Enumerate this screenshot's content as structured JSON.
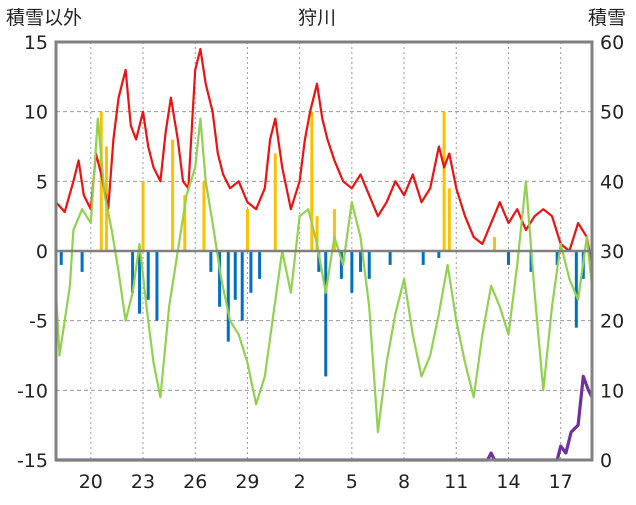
{
  "chart_data": {
    "type": "line",
    "title": "狩川",
    "ylabel_left": "積雪以外",
    "ylabel_right": "積雪",
    "yleft_range": [
      -15,
      15
    ],
    "yleft_ticks": [
      "15",
      "10",
      "5",
      "0",
      "-5",
      "-10",
      "-15"
    ],
    "yright_range": [
      0,
      60
    ],
    "yright_ticks": [
      "60",
      "50",
      "40",
      "30",
      "20",
      "10",
      "0"
    ],
    "x_ticks": [
      "20",
      "23",
      "26",
      "29",
      "2",
      "5",
      "8",
      "11",
      "14",
      "17"
    ],
    "day_range": [
      18,
      48.8
    ],
    "grid": true,
    "legend": "none",
    "colors": {
      "max_temp": "#ee1111",
      "min_temp": "#92d050",
      "precip": "#ffc000",
      "temp_below_zero_bar": "#0070c0",
      "snow_depth": "#7030a0",
      "frame": "#808080",
      "zero_line": "#808080"
    },
    "series": [
      {
        "key": "max_temp",
        "axis": "left",
        "points": [
          [
            18.0,
            3.5
          ],
          [
            18.5,
            2.8
          ],
          [
            19.0,
            5.0
          ],
          [
            19.3,
            6.5
          ],
          [
            19.6,
            4.0
          ],
          [
            20.0,
            3.0
          ],
          [
            20.3,
            7.0
          ],
          [
            20.6,
            5.5
          ],
          [
            21.0,
            3.0
          ],
          [
            21.3,
            8.0
          ],
          [
            21.6,
            11.0
          ],
          [
            22.0,
            13.0
          ],
          [
            22.3,
            9.0
          ],
          [
            22.6,
            8.0
          ],
          [
            23.0,
            10.0
          ],
          [
            23.3,
            7.5
          ],
          [
            23.6,
            6.0
          ],
          [
            24.0,
            5.0
          ],
          [
            24.3,
            8.5
          ],
          [
            24.6,
            11.0
          ],
          [
            25.0,
            8.0
          ],
          [
            25.3,
            5.0
          ],
          [
            25.6,
            4.5
          ],
          [
            26.0,
            13.0
          ],
          [
            26.3,
            14.5
          ],
          [
            26.6,
            12.0
          ],
          [
            27.0,
            10.0
          ],
          [
            27.3,
            7.0
          ],
          [
            27.6,
            5.5
          ],
          [
            28.0,
            4.5
          ],
          [
            28.5,
            5.0
          ],
          [
            29.0,
            3.5
          ],
          [
            29.5,
            3.0
          ],
          [
            30.0,
            4.5
          ],
          [
            30.3,
            8.0
          ],
          [
            30.6,
            9.5
          ],
          [
            31.0,
            6.0
          ],
          [
            31.5,
            3.0
          ],
          [
            32.0,
            5.0
          ],
          [
            32.3,
            8.0
          ],
          [
            32.6,
            10.0
          ],
          [
            33.0,
            12.0
          ],
          [
            33.3,
            9.5
          ],
          [
            33.6,
            8.0
          ],
          [
            34.0,
            6.5
          ],
          [
            34.5,
            5.0
          ],
          [
            35.0,
            4.5
          ],
          [
            35.5,
            5.5
          ],
          [
            36.0,
            4.0
          ],
          [
            36.5,
            2.5
          ],
          [
            37.0,
            3.5
          ],
          [
            37.5,
            5.0
          ],
          [
            38.0,
            4.0
          ],
          [
            38.5,
            5.5
          ],
          [
            39.0,
            3.5
          ],
          [
            39.5,
            4.5
          ],
          [
            40.0,
            7.5
          ],
          [
            40.3,
            6.0
          ],
          [
            40.6,
            7.0
          ],
          [
            41.0,
            4.5
          ],
          [
            41.5,
            2.5
          ],
          [
            42.0,
            1.0
          ],
          [
            42.5,
            0.5
          ],
          [
            43.0,
            2.0
          ],
          [
            43.5,
            3.5
          ],
          [
            44.0,
            2.0
          ],
          [
            44.5,
            3.0
          ],
          [
            45.0,
            1.5
          ],
          [
            45.5,
            2.5
          ],
          [
            46.0,
            3.0
          ],
          [
            46.5,
            2.5
          ],
          [
            47.0,
            0.5
          ],
          [
            47.5,
            0.0
          ],
          [
            48.0,
            2.0
          ],
          [
            48.5,
            1.0
          ],
          [
            48.8,
            -1.0
          ]
        ]
      },
      {
        "key": "min_temp",
        "axis": "left",
        "points": [
          [
            18.0,
            -3.0
          ],
          [
            18.2,
            -7.5
          ],
          [
            18.5,
            -5.0
          ],
          [
            18.8,
            -2.5
          ],
          [
            19.0,
            1.5
          ],
          [
            19.5,
            3.0
          ],
          [
            20.0,
            2.0
          ],
          [
            20.4,
            9.5
          ],
          [
            20.8,
            4.0
          ],
          [
            21.2,
            1.5
          ],
          [
            21.6,
            -1.5
          ],
          [
            22.0,
            -5.0
          ],
          [
            22.4,
            -3.0
          ],
          [
            22.8,
            0.5
          ],
          [
            23.2,
            -4.0
          ],
          [
            23.6,
            -8.0
          ],
          [
            24.0,
            -10.5
          ],
          [
            24.5,
            -4.0
          ],
          [
            25.0,
            0.0
          ],
          [
            25.5,
            4.0
          ],
          [
            26.0,
            6.0
          ],
          [
            26.3,
            9.5
          ],
          [
            26.6,
            5.0
          ],
          [
            27.0,
            2.0
          ],
          [
            27.5,
            -2.0
          ],
          [
            28.0,
            -5.0
          ],
          [
            28.5,
            -6.0
          ],
          [
            29.0,
            -8.0
          ],
          [
            29.5,
            -11.0
          ],
          [
            30.0,
            -9.0
          ],
          [
            30.5,
            -4.5
          ],
          [
            31.0,
            0.0
          ],
          [
            31.5,
            -3.0
          ],
          [
            32.0,
            2.5
          ],
          [
            32.5,
            3.0
          ],
          [
            33.0,
            0.5
          ],
          [
            33.5,
            -3.0
          ],
          [
            34.0,
            1.0
          ],
          [
            34.5,
            -1.0
          ],
          [
            35.0,
            3.5
          ],
          [
            35.5,
            1.0
          ],
          [
            36.0,
            -4.0
          ],
          [
            36.5,
            -13.0
          ],
          [
            37.0,
            -8.0
          ],
          [
            37.5,
            -4.5
          ],
          [
            38.0,
            -2.0
          ],
          [
            38.5,
            -6.0
          ],
          [
            39.0,
            -9.0
          ],
          [
            39.5,
            -7.5
          ],
          [
            40.0,
            -4.5
          ],
          [
            40.5,
            -1.0
          ],
          [
            41.0,
            -5.0
          ],
          [
            41.5,
            -8.0
          ],
          [
            42.0,
            -10.5
          ],
          [
            42.5,
            -6.0
          ],
          [
            43.0,
            -2.5
          ],
          [
            43.5,
            -4.0
          ],
          [
            44.0,
            -6.0
          ],
          [
            44.5,
            -1.0
          ],
          [
            45.0,
            5.0
          ],
          [
            45.5,
            -3.0
          ],
          [
            46.0,
            -10.0
          ],
          [
            46.5,
            -4.0
          ],
          [
            47.0,
            0.5
          ],
          [
            47.5,
            -2.0
          ],
          [
            48.0,
            -3.5
          ],
          [
            48.5,
            1.0
          ],
          [
            48.8,
            -2.5
          ]
        ]
      },
      {
        "key": "snow_depth",
        "axis": "right",
        "points": [
          [
            18.0,
            0
          ],
          [
            42.8,
            0
          ],
          [
            43.0,
            1
          ],
          [
            43.2,
            0
          ],
          [
            46.8,
            0
          ],
          [
            47.0,
            2
          ],
          [
            47.3,
            1
          ],
          [
            47.6,
            4
          ],
          [
            48.0,
            5
          ],
          [
            48.3,
            12
          ],
          [
            48.6,
            10
          ],
          [
            48.8,
            9
          ]
        ]
      }
    ],
    "bar_series": [
      {
        "key": "precip",
        "axis": "left",
        "bars": [
          [
            20.6,
            10.0
          ],
          [
            20.9,
            7.5
          ],
          [
            23.0,
            5.0
          ],
          [
            24.7,
            8.0
          ],
          [
            25.4,
            4.0
          ],
          [
            26.5,
            5.0
          ],
          [
            29.0,
            3.0
          ],
          [
            30.6,
            7.0
          ],
          [
            32.7,
            10.0
          ],
          [
            33.0,
            2.5
          ],
          [
            34.0,
            3.0
          ],
          [
            40.3,
            10.0
          ],
          [
            40.6,
            4.5
          ],
          [
            43.2,
            1.0
          ]
        ]
      },
      {
        "key": "temp_below_zero_bar",
        "axis": "left",
        "bars": [
          [
            18.3,
            -1.0
          ],
          [
            19.5,
            -1.5
          ],
          [
            22.4,
            -3.0
          ],
          [
            22.8,
            -4.5
          ],
          [
            23.3,
            -3.5
          ],
          [
            23.8,
            -5.0
          ],
          [
            26.9,
            -1.5
          ],
          [
            27.4,
            -4.0
          ],
          [
            27.9,
            -6.5
          ],
          [
            28.3,
            -3.5
          ],
          [
            28.7,
            -5.0
          ],
          [
            29.2,
            -3.0
          ],
          [
            29.7,
            -2.0
          ],
          [
            33.1,
            -1.5
          ],
          [
            33.5,
            -9.0
          ],
          [
            34.4,
            -2.0
          ],
          [
            35.0,
            -3.0
          ],
          [
            35.5,
            -1.5
          ],
          [
            36.0,
            -2.0
          ],
          [
            37.2,
            -1.0
          ],
          [
            39.1,
            -1.0
          ],
          [
            40.0,
            -0.5
          ],
          [
            44.0,
            -1.0
          ],
          [
            45.3,
            -1.5
          ],
          [
            46.8,
            -1.0
          ],
          [
            47.9,
            -5.5
          ],
          [
            48.3,
            -2.0
          ]
        ]
      }
    ]
  }
}
